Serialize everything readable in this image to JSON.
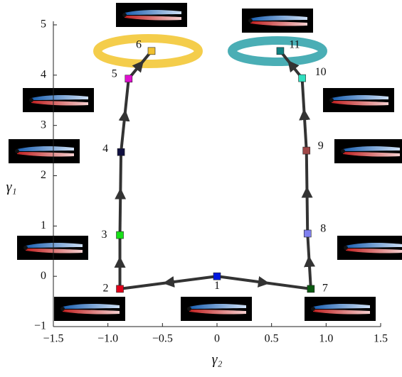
{
  "chart_data": {
    "type": "scatter",
    "xlabel": "γ₂",
    "ylabel": "γ₁",
    "labels": [
      "1",
      "2",
      "3",
      "4",
      "5",
      "6",
      "7",
      "8",
      "9",
      "10",
      "11"
    ],
    "x": [
      0,
      -0.89,
      -0.89,
      -0.88,
      -0.81,
      -0.6,
      0.86,
      0.83,
      0.82,
      0.78,
      0.58
    ],
    "y": [
      0,
      -0.25,
      0.82,
      2.47,
      3.93,
      4.48,
      -0.25,
      0.85,
      2.5,
      3.94,
      4.48
    ],
    "colors": [
      "#0018e0",
      "#e0001a",
      "#18e018",
      "#101040",
      "#e010d0",
      "#f0c030",
      "#0a5a10",
      "#8080f0",
      "#a04848",
      "#30e0c0",
      "#108080"
    ],
    "xlim": [
      -1.5,
      1.5
    ],
    "xticks": [
      {
        "value": -1.5,
        "label": "−1.5"
      },
      {
        "value": -1,
        "label": "−1.0"
      },
      {
        "value": -0.5,
        "label": "−0.5"
      },
      0,
      0.5,
      {
        "value": 1,
        "label": "1.0"
      },
      1.5
    ],
    "ylim": [
      -1,
      5
    ],
    "yticks": [
      {
        "value": -1,
        "label": "−1"
      },
      0,
      1,
      2,
      3,
      4,
      5
    ]
  }
}
